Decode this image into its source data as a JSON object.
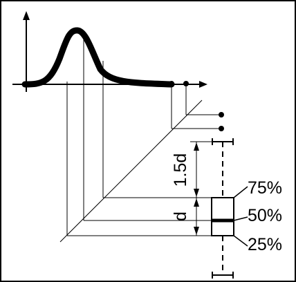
{
  "diagram": {
    "labels": {
      "q75": "75%",
      "q50": "50%",
      "q25": "25%",
      "iqr_length": "d",
      "whisker_length": "1.5d"
    },
    "colors": {
      "ink": "#000000",
      "background": "#ffffff"
    }
  }
}
